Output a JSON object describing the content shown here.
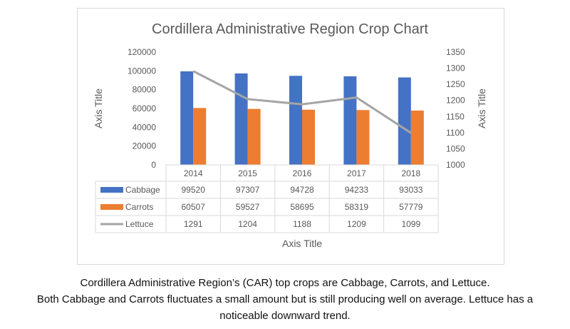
{
  "chart_data": {
    "type": "bar",
    "title": "Cordillera Administrative Region Crop Chart",
    "categories": [
      "2014",
      "2015",
      "2016",
      "2017",
      "2018"
    ],
    "series": [
      {
        "name": "Cabbage",
        "type": "bar",
        "axis": "left",
        "color": "#4472c4",
        "values": [
          99520,
          97307,
          94728,
          94233,
          93033
        ]
      },
      {
        "name": "Carrots",
        "type": "bar",
        "axis": "left",
        "color": "#ed7d31",
        "values": [
          60507,
          59527,
          58695,
          58319,
          57779
        ]
      },
      {
        "name": "Lettuce",
        "type": "line",
        "axis": "right",
        "color": "#a5a5a5",
        "values": [
          1291,
          1204,
          1188,
          1209,
          1099
        ]
      }
    ],
    "xlabel": "Axis Title",
    "ylabel": "Axis Title",
    "y2label": "Axis Title",
    "ylim": [
      0,
      120000
    ],
    "y2lim": [
      1000,
      1350
    ],
    "yticks": [
      "0",
      "20000",
      "40000",
      "60000",
      "80000",
      "100000",
      "120000"
    ],
    "y2ticks": [
      "1000",
      "1050",
      "1100",
      "1150",
      "1200",
      "1250",
      "1300",
      "1350"
    ],
    "data_table": true,
    "legend": "data-table",
    "grid": false
  },
  "caption": {
    "line1": "Cordillera Administrative Region’s (CAR) top crops are Cabbage, Carrots, and Lettuce.",
    "line2": "Both Cabbage and Carrots fluctuates a small amount but is still producing well on average. Lettuce has a",
    "line3": "noticeable downward trend."
  }
}
